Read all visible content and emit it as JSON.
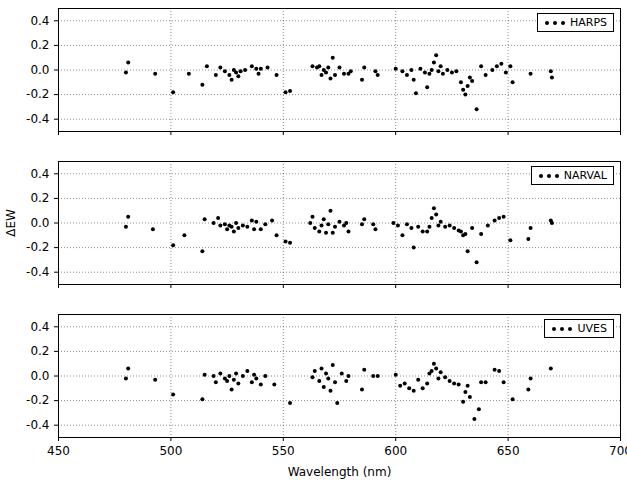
{
  "chart_data": [
    {
      "type": "scatter",
      "xlim": [
        450,
        700
      ],
      "xticks": [
        450,
        500,
        550,
        600,
        650,
        700
      ],
      "ylim": [
        -0.5,
        0.5
      ],
      "yticks": [
        {
          "value": -0.4,
          "label": "-0.4"
        },
        {
          "value": -0.2,
          "label": "-0.2"
        },
        {
          "value": 0,
          "label": "0.0"
        },
        {
          "value": 0.2,
          "label": "0.2"
        },
        {
          "value": 0.4,
          "label": "0.4"
        }
      ],
      "grid": true,
      "legend": "upper right",
      "tick_labels": "y",
      "x": [
        480,
        481,
        493,
        501,
        508,
        514,
        516,
        520,
        522,
        524,
        526,
        527,
        528,
        529,
        530,
        531,
        533,
        536,
        538,
        539,
        540,
        543,
        547,
        551,
        553,
        563,
        565,
        566,
        567,
        568,
        569,
        570,
        571,
        572,
        573,
        575,
        577,
        579,
        580,
        585,
        586,
        591,
        592,
        600,
        603,
        605,
        607,
        608,
        609,
        611,
        613,
        614,
        615,
        616,
        617,
        618,
        619,
        620,
        621,
        623,
        625,
        627,
        629,
        630,
        631,
        632,
        633,
        634,
        636,
        638,
        640,
        643,
        645,
        647,
        649,
        651,
        652,
        660,
        669,
        669.5
      ],
      "series": [
        {
          "name": "HARPS",
          "color": "#000000",
          "marker": "circle",
          "values": [
            -0.02,
            0.06,
            -0.03,
            -0.18,
            -0.03,
            -0.12,
            0.03,
            -0.04,
            0.02,
            -0.01,
            -0.04,
            -0.08,
            0.0,
            -0.02,
            -0.05,
            -0.01,
            0.0,
            0.03,
            0.01,
            -0.03,
            0.01,
            0.02,
            -0.04,
            -0.18,
            -0.17,
            0.03,
            0.02,
            0.03,
            -0.04,
            0.0,
            -0.02,
            0.02,
            -0.07,
            0.1,
            -0.04,
            0.02,
            -0.03,
            -0.03,
            -0.01,
            -0.08,
            0.02,
            -0.01,
            -0.04,
            0.01,
            -0.01,
            -0.04,
            0.0,
            -0.08,
            -0.19,
            0.01,
            -0.02,
            -0.14,
            -0.03,
            0.0,
            0.06,
            0.12,
            -0.01,
            0.03,
            -0.03,
            0.0,
            -0.02,
            -0.01,
            -0.1,
            -0.16,
            -0.2,
            -0.13,
            -0.06,
            -0.09,
            -0.32,
            0.03,
            -0.04,
            0.0,
            0.03,
            0.05,
            -0.02,
            0.03,
            -0.1,
            -0.03,
            -0.01,
            -0.06
          ]
        }
      ]
    },
    {
      "type": "scatter",
      "y_label": "ΔEW",
      "xlim": [
        450,
        700
      ],
      "xticks": [
        450,
        500,
        550,
        600,
        650,
        700
      ],
      "ylim": [
        -0.5,
        0.5
      ],
      "yticks": [
        {
          "value": -0.4,
          "label": "-0.4"
        },
        {
          "value": -0.2,
          "label": "-0.2"
        },
        {
          "value": 0,
          "label": "0.0"
        },
        {
          "value": 0.2,
          "label": "0.2"
        },
        {
          "value": 0.4,
          "label": "0.4"
        }
      ],
      "grid": true,
      "legend": "upper right",
      "tick_labels": "y",
      "x": [
        480,
        481,
        492,
        501,
        506,
        514,
        515,
        519,
        521,
        522,
        524,
        525,
        526,
        527,
        528,
        529,
        530,
        532,
        534,
        536,
        537,
        538,
        540,
        542,
        545,
        547,
        551,
        553,
        562,
        563,
        564,
        566,
        567,
        568,
        569,
        570,
        571,
        572,
        573,
        575,
        577,
        578,
        579,
        585,
        586,
        590,
        591,
        599,
        601,
        603,
        605,
        607,
        608,
        610,
        612,
        614,
        615,
        616,
        617,
        618,
        619,
        620,
        622,
        624,
        626,
        628,
        629,
        630,
        631,
        632,
        634,
        636,
        638,
        641,
        644,
        646,
        648,
        651,
        659,
        660,
        669,
        669.5
      ],
      "series": [
        {
          "name": "NARVAL",
          "color": "#000000",
          "marker": "circle",
          "values": [
            -0.03,
            0.05,
            -0.05,
            -0.18,
            -0.1,
            -0.23,
            0.03,
            0.0,
            0.04,
            -0.02,
            -0.01,
            -0.05,
            -0.02,
            -0.03,
            -0.07,
            0.0,
            -0.04,
            -0.02,
            -0.03,
            0.02,
            -0.05,
            0.01,
            -0.05,
            -0.01,
            0.02,
            -0.1,
            -0.15,
            -0.16,
            0.0,
            0.05,
            -0.04,
            -0.07,
            -0.02,
            0.03,
            -0.08,
            -0.01,
            0.1,
            -0.08,
            -0.03,
            0.01,
            -0.02,
            0.0,
            -0.07,
            -0.01,
            0.03,
            -0.01,
            -0.05,
            0.0,
            -0.02,
            -0.1,
            -0.01,
            -0.04,
            -0.2,
            -0.03,
            -0.07,
            -0.07,
            -0.03,
            0.04,
            0.12,
            0.07,
            -0.02,
            0.01,
            -0.03,
            -0.02,
            -0.04,
            -0.06,
            -0.07,
            -0.1,
            -0.09,
            -0.23,
            -0.04,
            -0.32,
            -0.09,
            -0.02,
            0.02,
            0.04,
            0.05,
            -0.14,
            -0.13,
            -0.04,
            0.02,
            0.0
          ]
        }
      ]
    },
    {
      "type": "scatter",
      "x_label": "Wavelength (nm)",
      "xlim": [
        450,
        700
      ],
      "xticks": [
        450,
        500,
        550,
        600,
        650,
        700
      ],
      "ylim": [
        -0.5,
        0.5
      ],
      "yticks": [
        {
          "value": -0.4,
          "label": "-0.4"
        },
        {
          "value": -0.2,
          "label": "-0.2"
        },
        {
          "value": 0,
          "label": "0.0"
        },
        {
          "value": 0.2,
          "label": "0.2"
        },
        {
          "value": 0.4,
          "label": "0.4"
        }
      ],
      "grid": true,
      "legend": "upper right",
      "tick_labels": true,
      "x": [
        480,
        481,
        493,
        501,
        514,
        515,
        519,
        520,
        522,
        524,
        525,
        526,
        527,
        528,
        529,
        530,
        532,
        534,
        536,
        537,
        538,
        540,
        542,
        546,
        553,
        563,
        564,
        566,
        567,
        568,
        569,
        570,
        571,
        572,
        573,
        574,
        576,
        578,
        579,
        585,
        586,
        590,
        592,
        600,
        602,
        604,
        606,
        608,
        610,
        612,
        614,
        615,
        616,
        617,
        618,
        619,
        620,
        622,
        624,
        626,
        628,
        630,
        631,
        632,
        633,
        635,
        637,
        638,
        640,
        644,
        646,
        648,
        652,
        659,
        660,
        669
      ],
      "series": [
        {
          "name": "UVES",
          "color": "#000000",
          "marker": "circle",
          "values": [
            -0.02,
            0.06,
            -0.03,
            -0.15,
            -0.19,
            0.01,
            0.0,
            -0.05,
            0.02,
            -0.02,
            -0.04,
            0.0,
            -0.11,
            -0.03,
            0.02,
            -0.06,
            0.0,
            0.04,
            -0.05,
            0.01,
            -0.02,
            -0.07,
            0.0,
            -0.07,
            -0.22,
            -0.01,
            0.04,
            -0.04,
            0.06,
            -0.09,
            0.02,
            -0.02,
            -0.12,
            0.09,
            -0.05,
            -0.22,
            0.02,
            -0.04,
            0.0,
            -0.11,
            0.05,
            0.0,
            0.0,
            0.01,
            -0.08,
            -0.06,
            -0.1,
            -0.12,
            -0.03,
            -0.1,
            -0.06,
            0.02,
            0.04,
            0.1,
            0.06,
            -0.02,
            0.03,
            -0.01,
            -0.04,
            -0.06,
            -0.07,
            -0.21,
            -0.13,
            -0.08,
            -0.17,
            -0.35,
            -0.27,
            -0.05,
            -0.05,
            0.05,
            0.04,
            -0.05,
            -0.19,
            -0.11,
            -0.02,
            0.06
          ]
        }
      ]
    }
  ]
}
